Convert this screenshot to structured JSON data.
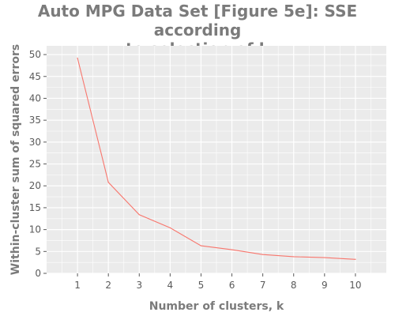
{
  "chart_data": {
    "type": "line",
    "title_lines": [
      "Auto MPG Data Set [Figure 5e]: SSE according",
      "to selection of k"
    ],
    "xlabel": "Number of clusters, k",
    "ylabel": "Within-cluster sum of squared errors",
    "x": [
      1,
      2,
      3,
      4,
      5,
      6,
      7,
      8,
      9,
      10
    ],
    "xlim": [
      0,
      11
    ],
    "ylim": [
      0,
      52
    ],
    "yticks": [
      0,
      5,
      10,
      15,
      20,
      25,
      30,
      35,
      40,
      45,
      50
    ],
    "series": [
      {
        "values": [
          49.2,
          20.8,
          13.4,
          10.4,
          6.3,
          5.4,
          4.3,
          3.8,
          3.6,
          3.2
        ]
      }
    ],
    "grid": true,
    "colors": {
      "line": "#f8766d",
      "panel": "#ebebeb",
      "grid": "#ffffff",
      "text": "#7b7b7b"
    }
  }
}
